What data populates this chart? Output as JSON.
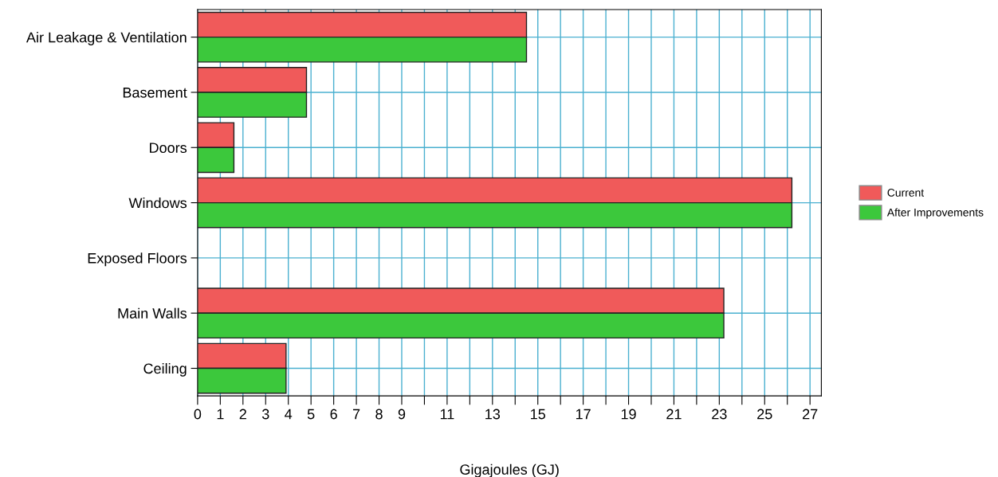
{
  "chart_data": {
    "type": "bar",
    "orientation": "horizontal",
    "xlabel": "Gigajoules (GJ)",
    "categories": [
      "Air Leakage & Ventilation",
      "Basement",
      "Doors",
      "Windows",
      "Exposed Floors",
      "Main Walls",
      "Ceiling"
    ],
    "series": [
      {
        "name": "Current",
        "color": "#f05a5a",
        "values": [
          14.5,
          4.8,
          1.6,
          26.2,
          0,
          23.2,
          3.9
        ]
      },
      {
        "name": "After Improvements",
        "color": "#3cc83c",
        "values": [
          14.5,
          4.8,
          1.6,
          26.2,
          0,
          23.2,
          3.9
        ]
      }
    ],
    "xlim": [
      0,
      27.5
    ],
    "xticks": [
      0,
      1,
      2,
      3,
      4,
      5,
      6,
      7,
      8,
      9,
      {
        "value": 10,
        "label": null
      },
      11,
      {
        "value": 12,
        "label": null
      },
      13,
      {
        "value": 14,
        "label": null
      },
      15,
      {
        "value": 16,
        "label": null
      },
      17,
      {
        "value": 18,
        "label": null
      },
      19,
      {
        "value": 20,
        "label": null
      },
      21,
      {
        "value": 22,
        "label": null
      },
      23,
      {
        "value": 24,
        "label": null
      },
      25,
      {
        "value": 26,
        "label": null
      },
      27
    ],
    "grid": true,
    "legend": "right"
  }
}
